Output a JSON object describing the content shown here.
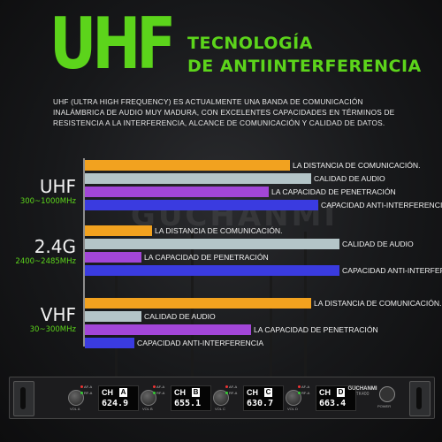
{
  "header": {
    "title": "UHF",
    "subtitle_line1": "TECNOLOGÍA",
    "subtitle_line2": "DE ANTIINTERFERENCIA"
  },
  "description": "UHF (ULTRA HIGH FREQUENCY) ES ACTUALMENTE UNA BANDA DE COMUNICACIÓN INALÁMBRICA DE AUDIO MUY MADURA, CON EXCELENTES CAPACIDADES EN TÉRMINOS DE RESISTENCIA A LA INTERFERENCIA, ALCANCE DE COMUNICACIÓN Y CALIDAD DE DATOS.",
  "watermark": "GUCHANMI",
  "colors": {
    "accent_green": "#5cd41b",
    "bar_orange": "#f2a21f",
    "bar_gray": "#b4c5c8",
    "bar_purple": "#a246d8",
    "bar_blue": "#3a3be0"
  },
  "chart_data": {
    "type": "bar",
    "orientation": "horizontal",
    "groups": [
      {
        "band": "UHF",
        "range": "300~1000MHz",
        "bars": [
          {
            "label": "LA DISTANCIA DE COMUNICACIÓN.",
            "value": 0.58,
            "color": "#f2a21f"
          },
          {
            "label": "CALIDAD DE AUDIO",
            "value": 0.64,
            "color": "#b4c5c8"
          },
          {
            "label": "LA CAPACIDAD DE PENETRACIÓN",
            "value": 0.52,
            "color": "#a246d8"
          },
          {
            "label": "CAPACIDAD ANTI-INTERFERENCIA",
            "value": 0.66,
            "color": "#3a3be0"
          }
        ]
      },
      {
        "band": "2.4G",
        "range": "2400~2485MHz",
        "bars": [
          {
            "label": "LA DISTANCIA DE COMUNICACIÓN.",
            "value": 0.19,
            "color": "#f2a21f"
          },
          {
            "label": "CALIDAD DE AUDIO",
            "value": 0.72,
            "color": "#b4c5c8"
          },
          {
            "label": "LA CAPACIDAD DE PENETRACIÓN",
            "value": 0.16,
            "color": "#a246d8"
          },
          {
            "label": "CAPACIDAD ANTI-INTERFERENCIA",
            "value": 0.72,
            "color": "#3a3be0"
          }
        ]
      },
      {
        "band": "VHF",
        "range": "30~300MHz",
        "bars": [
          {
            "label": "LA DISTANCIA DE COMUNICACIÓN.",
            "value": 0.64,
            "color": "#f2a21f"
          },
          {
            "label": "CALIDAD DE AUDIO",
            "value": 0.16,
            "color": "#b4c5c8"
          },
          {
            "label": "LA CAPACIDAD DE PENETRACIÓN",
            "value": 0.47,
            "color": "#a246d8"
          },
          {
            "label": "CAPACIDAD ANTI-INTERFERENCIA",
            "value": 0.14,
            "color": "#3a3be0"
          }
        ]
      }
    ]
  },
  "receiver": {
    "brand": "GUCHANMI",
    "model": "TK400",
    "power_label": "POWER",
    "channels": [
      {
        "label": "CH",
        "letter": "A",
        "freq": "624.9",
        "vol": "VOL A"
      },
      {
        "label": "CH",
        "letter": "B",
        "freq": "655.1",
        "vol": "VOL B"
      },
      {
        "label": "CH",
        "letter": "C",
        "freq": "630.7",
        "vol": "VOL C"
      },
      {
        "label": "CH",
        "letter": "D",
        "freq": "663.4",
        "vol": "VOL D"
      }
    ]
  }
}
